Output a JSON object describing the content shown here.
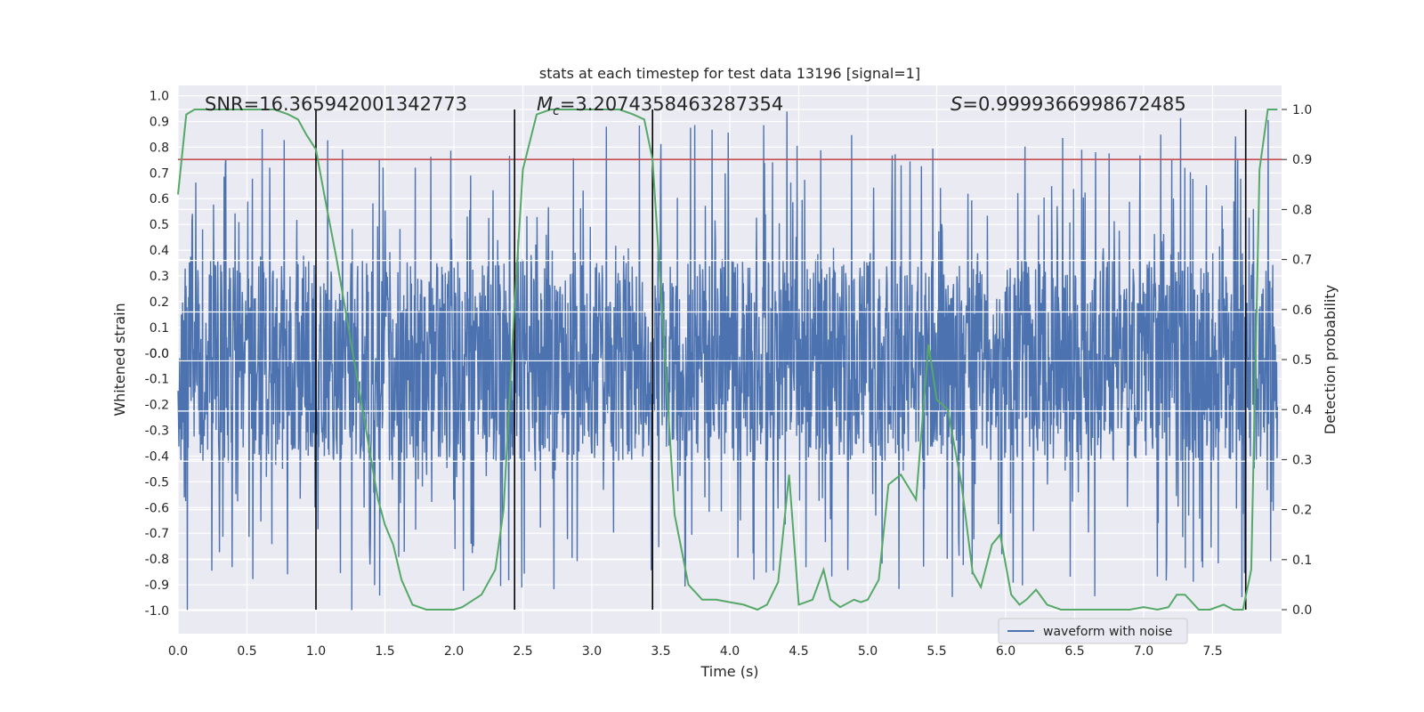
{
  "chart_data": {
    "type": "line",
    "title": "stats at each timestep for test data 13196 [signal=1]",
    "xlabel": "Time (s)",
    "ylabel": "Whitened strain",
    "y2label": "Detection probability",
    "xlim": [
      0.0,
      8.0
    ],
    "ylim": [
      -1.09,
      1.04
    ],
    "y2lim": [
      -0.048,
      1.048
    ],
    "xticks": [
      "0.0",
      "0.5",
      "1.0",
      "1.5",
      "2.0",
      "2.5",
      "3.0",
      "3.5",
      "4.0",
      "4.5",
      "5.0",
      "5.5",
      "6.0",
      "6.5",
      "7.0",
      "7.5"
    ],
    "xtick_values": [
      0.0,
      0.5,
      1.0,
      1.5,
      2.0,
      2.5,
      3.0,
      3.5,
      4.0,
      4.5,
      5.0,
      5.5,
      6.0,
      6.5,
      7.0,
      7.5
    ],
    "yticks": [
      "1.0",
      "0.9",
      "0.8",
      "0.7",
      "0.6",
      "0.5",
      "0.4",
      "0.3",
      "0.2",
      "0.1",
      "0.0",
      "-0.0",
      "-0.1",
      "-0.2",
      "-0.3",
      "-0.4",
      "-0.5",
      "-0.6",
      "-0.7",
      "-0.8",
      "-0.9",
      "-1.0"
    ],
    "ytick_values": [
      1.0,
      0.9,
      0.8,
      0.7,
      0.6,
      0.5,
      0.4,
      0.3,
      0.2,
      0.1,
      0.0,
      -0.0,
      -0.1,
      -0.2,
      -0.3,
      -0.4,
      -0.5,
      -0.6,
      -0.7,
      -0.8,
      -0.9,
      -1.0
    ],
    "y2ticks": [
      "1.0",
      "0.9",
      "0.8",
      "0.7",
      "0.6",
      "0.5",
      "0.4",
      "0.3",
      "0.2",
      "0.1",
      "0.0"
    ],
    "y2tick_values": [
      1.0,
      0.9,
      0.8,
      0.7,
      0.6,
      0.5,
      0.4,
      0.3,
      0.2,
      0.1,
      0.0
    ],
    "annotations": {
      "snr": "SNR=16.365942001342773",
      "mc_symbol": "M",
      "mc_subscript": "c",
      "mc_value": "=3.2074358463287354",
      "s_symbol": "S",
      "s_value": "=0.9999366998672485"
    },
    "threshold": 0.9,
    "vertical_lines": [
      1.0,
      2.44,
      3.44,
      7.74
    ],
    "legend": [
      "waveform with noise"
    ],
    "legend_position": "bottom-right",
    "series": [
      {
        "name": "waveform with noise",
        "color": "#4c72b0",
        "noise_band": [
          -0.42,
          0.36
        ],
        "spike_range": [
          -1.0,
          0.94
        ]
      },
      {
        "name": "Detection probability",
        "color": "#55a868",
        "axis": "right",
        "x": [
          0.0,
          0.06,
          0.12,
          0.2,
          0.3,
          0.4,
          0.5,
          0.6,
          0.7,
          0.8,
          0.87,
          0.93,
          1.0,
          1.06,
          1.15,
          1.25,
          1.35,
          1.45,
          1.5,
          1.56,
          1.62,
          1.7,
          1.8,
          1.9,
          2.0,
          2.06,
          2.2,
          2.3,
          2.36,
          2.44,
          2.5,
          2.6,
          2.7,
          2.8,
          2.9,
          3.0,
          3.1,
          3.2,
          3.3,
          3.38,
          3.44,
          3.5,
          3.6,
          3.7,
          3.8,
          3.9,
          4.0,
          4.1,
          4.2,
          4.27,
          4.35,
          4.43,
          4.5,
          4.6,
          4.68,
          4.73,
          4.8,
          4.9,
          4.95,
          5.0,
          5.08,
          5.15,
          5.24,
          5.35,
          5.44,
          5.5,
          5.58,
          5.68,
          5.76,
          5.82,
          5.9,
          5.96,
          6.04,
          6.1,
          6.15,
          6.22,
          6.3,
          6.4,
          6.5,
          6.6,
          6.7,
          6.8,
          6.9,
          7.0,
          7.1,
          7.18,
          7.24,
          7.3,
          7.4,
          7.48,
          7.58,
          7.65,
          7.72,
          7.78,
          7.84,
          7.9,
          7.97
        ],
        "values": [
          0.83,
          0.99,
          1.0,
          1.0,
          1.0,
          1.0,
          1.0,
          1.0,
          1.0,
          0.99,
          0.98,
          0.95,
          0.92,
          0.83,
          0.7,
          0.54,
          0.38,
          0.22,
          0.17,
          0.13,
          0.06,
          0.01,
          0.0,
          0.0,
          0.0,
          0.005,
          0.03,
          0.08,
          0.2,
          0.61,
          0.88,
          0.99,
          1.0,
          1.0,
          1.0,
          1.0,
          1.0,
          1.0,
          0.99,
          0.98,
          0.9,
          0.64,
          0.19,
          0.05,
          0.02,
          0.02,
          0.015,
          0.01,
          0.0,
          0.01,
          0.055,
          0.27,
          0.01,
          0.02,
          0.08,
          0.02,
          0.005,
          0.02,
          0.015,
          0.02,
          0.06,
          0.25,
          0.27,
          0.22,
          0.53,
          0.42,
          0.4,
          0.25,
          0.075,
          0.045,
          0.13,
          0.15,
          0.03,
          0.01,
          0.02,
          0.04,
          0.01,
          0.0,
          0.0,
          0.0,
          0.0,
          0.0,
          0.0,
          0.005,
          0.0,
          0.005,
          0.03,
          0.03,
          0.0,
          0.0,
          0.01,
          0.0,
          0.0,
          0.08,
          0.88,
          1.0,
          1.0
        ]
      }
    ]
  }
}
